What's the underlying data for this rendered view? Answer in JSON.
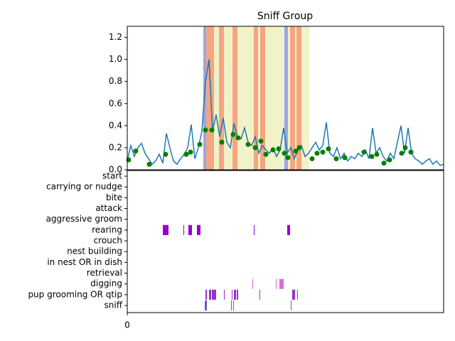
{
  "chart_data": [
    {
      "type": "line",
      "title": "Sniff Group",
      "xlim": [
        0,
        89
      ],
      "ylim": [
        0,
        1.3
      ],
      "yticks": [
        {
          "value": 0,
          "label": "0.0"
        },
        0.2,
        0.4,
        0.6,
        0.8,
        {
          "value": 1,
          "label": "1.0"
        },
        1.2
      ],
      "color": "#1f77b4",
      "values": [
        0.08,
        0.22,
        0.12,
        0.2,
        0.24,
        0.15,
        0.1,
        0.05,
        0.08,
        0.14,
        0.06,
        0.33,
        0.2,
        0.08,
        0.05,
        0.1,
        0.14,
        0.2,
        0.41,
        0.1,
        0.2,
        0.35,
        0.8,
        1.0,
        0.35,
        0.5,
        0.3,
        0.47,
        0.25,
        0.2,
        0.42,
        0.3,
        0.28,
        0.38,
        0.25,
        0.22,
        0.3,
        0.15,
        0.22,
        0.18,
        0.15,
        0.2,
        0.12,
        0.18,
        0.38,
        0.15,
        0.2,
        0.1,
        0.18,
        0.22,
        0.12,
        0.15,
        0.2,
        0.25,
        0.18,
        0.22,
        0.43,
        0.15,
        0.12,
        0.2,
        0.1,
        0.15,
        0.08,
        0.12,
        0.1,
        0.15,
        0.12,
        0.18,
        0.1,
        0.38,
        0.15,
        0.2,
        0.12,
        0.08,
        0.15,
        0.1,
        0.25,
        0.4,
        0.15,
        0.38,
        0.15,
        0.1,
        0.08,
        0.05,
        0.08,
        0.1,
        0.05,
        0.08,
        0.04,
        0.05
      ],
      "points": {
        "color": "#008000",
        "x": [
          0.4,
          2.4,
          6.2,
          10.8,
          16.6,
          17.8,
          20.4,
          22,
          23.8,
          26.6,
          29.8,
          31.2,
          34,
          36,
          37.6,
          39,
          41,
          42.6,
          44.2,
          45.2,
          47.4,
          48.4,
          52,
          53.4,
          55,
          56.6,
          58.8,
          61.2,
          66.6,
          68.8,
          70.2,
          72.2,
          73.8,
          77.2,
          78.2,
          79.8
        ],
        "y": [
          0.09,
          0.17,
          0.05,
          0.14,
          0.14,
          0.16,
          0.23,
          0.36,
          0.36,
          0.25,
          0.32,
          0.29,
          0.23,
          0.2,
          0.26,
          0.14,
          0.18,
          0.19,
          0.15,
          0.11,
          0.17,
          0.2,
          0.1,
          0.15,
          0.16,
          0.19,
          0.1,
          0.11,
          0.16,
          0.12,
          0.14,
          0.06,
          0.09,
          0.15,
          0.2,
          0.16
        ]
      },
      "spans": [
        {
          "start": 24.2,
          "end": 51.2,
          "color": "#f2f2c8"
        },
        {
          "start": 21.4,
          "end": 22.2,
          "color": "#9aa6e6"
        },
        {
          "start": 22.2,
          "end": 24.4,
          "color": "#f4a582"
        },
        {
          "start": 25.8,
          "end": 27.2,
          "color": "#f4a582"
        },
        {
          "start": 29.6,
          "end": 31,
          "color": "#f4a582"
        },
        {
          "start": 35.6,
          "end": 36.8,
          "color": "#f4a582"
        },
        {
          "start": 37.4,
          "end": 38.8,
          "color": "#f4a582"
        },
        {
          "start": 44.2,
          "end": 45.2,
          "color": "#9aa6e6"
        },
        {
          "start": 45.8,
          "end": 47.2,
          "color": "#f4a582"
        },
        {
          "start": 47.6,
          "end": 49,
          "color": "#f4a582"
        }
      ]
    },
    {
      "type": "raster",
      "xlim": [
        0,
        89
      ],
      "xticks": [
        0
      ],
      "categories": [
        "start",
        "carrying or nudge",
        "bite",
        "attack",
        "aggressive groom",
        "rearing",
        "crouch",
        "nest building",
        "in nest OR in dish",
        "retrieval",
        "digging",
        "pup grooming OR qtip",
        "sniff"
      ],
      "colors": [
        "#9400d3",
        "#9400d3",
        "#9400d3",
        "#9400d3",
        "#9400d3",
        "#9400d3",
        "#9400d3",
        "#9400d3",
        "#9400d3",
        "#9400d3",
        "#da70d6",
        "#9932cc",
        "#6a5acd"
      ],
      "events": [
        [],
        [],
        [],
        [],
        [],
        [
          [
            10,
            11.6
          ],
          [
            15.8,
            16
          ],
          [
            17.2,
            18.2
          ],
          [
            19.6,
            20.6
          ],
          [
            35.6,
            35.8
          ],
          [
            45,
            45.8
          ]
        ],
        [],
        [],
        [],
        [],
        [
          [
            35.2,
            35.4
          ],
          [
            41.8,
            42
          ],
          [
            42.8,
            44
          ]
        ],
        [
          [
            22,
            22.4
          ],
          [
            23,
            23.6
          ],
          [
            23.8,
            25
          ],
          [
            27.2,
            27.4
          ],
          [
            29.4,
            29.6
          ],
          [
            30,
            30.6
          ],
          [
            30.8,
            31.2
          ],
          [
            37.2,
            37.4
          ],
          [
            46.4,
            47.2
          ],
          [
            47.8,
            48
          ]
        ],
        [
          [
            21.8,
            22.4
          ],
          [
            29.2,
            29.4
          ],
          [
            29.8,
            30
          ],
          [
            46,
            46.2
          ]
        ]
      ]
    }
  ]
}
